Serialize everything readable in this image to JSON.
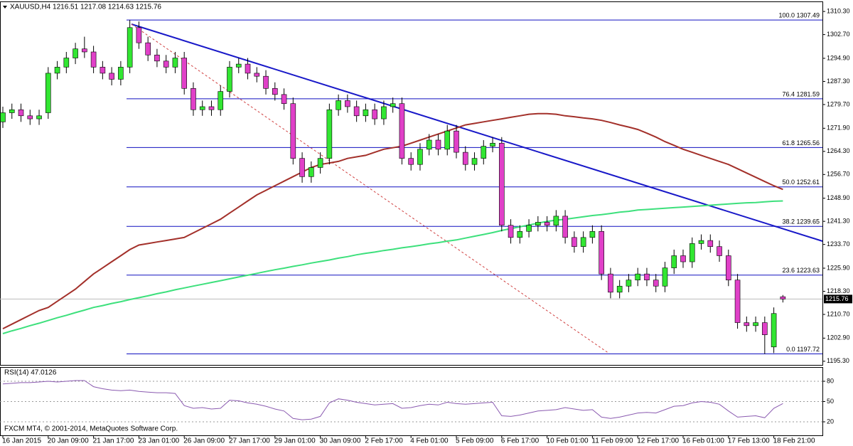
{
  "chart_data": [
    {
      "type": "candlestick",
      "title": "XAUUSD,H4  1216.51 1217.08 1214.63 1215.76",
      "categories": [
        "16 Jan 2015",
        null,
        null,
        null,
        null,
        "20 Jan 09:00",
        null,
        null,
        null,
        null,
        "21 Jan 17:00",
        null,
        null,
        null,
        null,
        "23 Jan 01:00",
        null,
        null,
        null,
        null,
        "26 Jan 09:00",
        null,
        null,
        null,
        null,
        "27 Jan 17:00",
        null,
        null,
        null,
        null,
        "29 Jan 01:00",
        null,
        null,
        null,
        null,
        "30 Jan 09:00",
        null,
        null,
        null,
        null,
        "2 Feb 17:00",
        null,
        null,
        null,
        null,
        "4 Feb 01:00",
        null,
        null,
        null,
        null,
        "5 Feb 09:00",
        null,
        null,
        null,
        null,
        "6 Feb 17:00",
        null,
        null,
        null,
        null,
        "10 Feb 01:00",
        null,
        null,
        null,
        null,
        "11 Feb 09:00",
        null,
        null,
        null,
        null,
        "12 Feb 17:00",
        null,
        null,
        null,
        null,
        "16 Feb 01:00",
        null,
        null,
        null,
        null,
        "17 Feb 13:00",
        null,
        null,
        null,
        null,
        "18 Feb 21:00",
        null
      ],
      "open": [
        1274,
        1277,
        1278,
        1276,
        1275,
        1277,
        1290,
        1292,
        1295,
        1298,
        1297,
        1292,
        1290,
        1288,
        1292,
        1305,
        1300,
        1296,
        1294,
        1292,
        1295,
        1285,
        1278,
        1279,
        1278,
        1284,
        1292,
        1293,
        1290,
        1289,
        1285,
        1283,
        1280,
        1262,
        1256,
        1259,
        1262,
        1278,
        1281,
        1279,
        1276,
        1278,
        1275,
        1279,
        1280,
        1262,
        1260,
        1265,
        1268,
        1265,
        1271,
        1264,
        1260,
        1262,
        1266,
        1267,
        1240,
        1236,
        1238,
        1240,
        1241,
        1240,
        1243,
        1236,
        1233,
        1236,
        1238,
        1224,
        1218,
        1220,
        1222,
        1224,
        1222,
        1220,
        1226,
        1230,
        1228,
        1234,
        1235,
        1233,
        1230,
        1222,
        1208,
        1207,
        1208,
        1200,
        1216.51
      ],
      "high": [
        1279,
        1280,
        1280,
        1278,
        1278,
        1292,
        1294,
        1297,
        1300,
        1302,
        1299,
        1294,
        1292,
        1294,
        1307.49,
        1307,
        1302,
        1298,
        1296,
        1297,
        1297,
        1287,
        1281,
        1281,
        1286,
        1294,
        1295,
        1295,
        1292,
        1291,
        1287,
        1285,
        1282,
        1264,
        1261,
        1264,
        1280,
        1283,
        1283,
        1281,
        1280,
        1280,
        1281,
        1282,
        1282,
        1264,
        1267,
        1270,
        1270,
        1273,
        1273,
        1266,
        1264,
        1268,
        1269,
        1269,
        1242,
        1240,
        1242,
        1243,
        1243,
        1245,
        1245,
        1238,
        1238,
        1240,
        1240,
        1226,
        1222,
        1224,
        1226,
        1226,
        1224,
        1228,
        1232,
        1232,
        1236,
        1237,
        1237,
        1235,
        1232,
        1224,
        1210,
        1210,
        1210,
        1213,
        1217.08
      ],
      "low": [
        1272,
        1275,
        1274,
        1273,
        1273,
        1275,
        1288,
        1290,
        1293,
        1295,
        1290,
        1288,
        1286,
        1286,
        1290,
        1298,
        1294,
        1292,
        1290,
        1290,
        1283,
        1276,
        1276,
        1276,
        1276,
        1282,
        1290,
        1288,
        1287,
        1283,
        1281,
        1278,
        1260,
        1254,
        1254,
        1257,
        1260,
        1276,
        1277,
        1274,
        1274,
        1273,
        1273,
        1277,
        1260,
        1258,
        1258,
        1263,
        1263,
        1263,
        1262,
        1258,
        1258,
        1260,
        1264,
        1238,
        1234,
        1234,
        1236,
        1238,
        1238,
        1238,
        1234,
        1231,
        1231,
        1234,
        1222,
        1216,
        1216,
        1218,
        1220,
        1220,
        1218,
        1218,
        1224,
        1226,
        1226,
        1232,
        1231,
        1228,
        1220,
        1206,
        1205,
        1205,
        1197.72,
        1198,
        1214.63
      ],
      "close": [
        1277,
        1278,
        1276,
        1275,
        1276,
        1290,
        1292,
        1295,
        1298,
        1297,
        1292,
        1290,
        1288,
        1292,
        1305,
        1300,
        1296,
        1294,
        1292,
        1295,
        1285,
        1278,
        1279,
        1278,
        1284,
        1292,
        1293,
        1290,
        1289,
        1285,
        1283,
        1280,
        1262,
        1256,
        1259,
        1262,
        1278,
        1281,
        1279,
        1276,
        1278,
        1275,
        1279,
        1280,
        1262,
        1260,
        1265,
        1268,
        1265,
        1271,
        1264,
        1260,
        1262,
        1266,
        1267,
        1240,
        1236,
        1238,
        1240,
        1241,
        1240,
        1243,
        1236,
        1233,
        1236,
        1238,
        1224,
        1218,
        1220,
        1222,
        1224,
        1222,
        1220,
        1226,
        1230,
        1228,
        1234,
        1235,
        1233,
        1230,
        1222,
        1208,
        1207,
        1208,
        1204,
        1211,
        1215.76
      ],
      "up_color": "#32e632",
      "down_color": "#e040c8",
      "lines": [
        {
          "color": "#a3302a",
          "values": [
            1206,
            1207.5,
            1209,
            1210.5,
            1212,
            1213,
            1215,
            1217,
            1219,
            1221.5,
            1224,
            1226,
            1228,
            1230,
            1232,
            1233.5,
            1234,
            1234.5,
            1235,
            1235.5,
            1236,
            1237.5,
            1239,
            1240.5,
            1242,
            1244,
            1246,
            1248,
            1250,
            1251.5,
            1253,
            1254.5,
            1256,
            1257.5,
            1259,
            1260,
            1260.5,
            1261,
            1262,
            1262.5,
            1263,
            1264,
            1265,
            1265.5,
            1266,
            1267,
            1268,
            1269,
            1270,
            1271,
            1272,
            1273,
            1273.5,
            1274,
            1274.5,
            1275,
            1275.5,
            1276,
            1276.5,
            1276.7,
            1276.7,
            1276.5,
            1276,
            1275.7,
            1275.3,
            1275,
            1274.5,
            1273.8,
            1273,
            1272.3,
            1271.5,
            1270.3,
            1269,
            1267.5,
            1266.3,
            1265,
            1264,
            1263,
            1262,
            1261,
            1260,
            1258.6,
            1257.2,
            1255.8,
            1254.4,
            1253,
            1251.8
          ]
        },
        {
          "color": "#3de07c",
          "values": [
            1204.4,
            1205.3,
            1206.1,
            1207,
            1207.8,
            1208.7,
            1209.6,
            1210.4,
            1211.3,
            1212.1,
            1213,
            1213.6,
            1214.3,
            1214.9,
            1215.6,
            1216.2,
            1216.8,
            1217.5,
            1218.1,
            1218.8,
            1219.4,
            1220,
            1220.6,
            1221.2,
            1221.8,
            1222.4,
            1223,
            1223.6,
            1224.2,
            1224.8,
            1225.4,
            1225.9,
            1226.5,
            1227,
            1227.6,
            1228.1,
            1228.6,
            1229.2,
            1229.7,
            1230.3,
            1230.8,
            1231.2,
            1231.7,
            1232.1,
            1232.6,
            1233,
            1233.4,
            1233.9,
            1234.3,
            1234.8,
            1235.2,
            1235.8,
            1236.4,
            1237,
            1237.6,
            1238.3,
            1238.9,
            1239.5,
            1240.1,
            1240.7,
            1241.3,
            1241.7,
            1242,
            1242.4,
            1242.8,
            1243.2,
            1243.5,
            1243.9,
            1244.3,
            1244.6,
            1245,
            1245.2,
            1245.4,
            1245.6,
            1245.8,
            1246,
            1246.2,
            1246.4,
            1246.6,
            1246.8,
            1247,
            1247.2,
            1247.4,
            1247.5,
            1247.7,
            1247.9,
            1248
          ]
        }
      ],
      "fib_levels": [
        {
          "value": 1307.49,
          "label": "100.0 1307.49"
        },
        {
          "value": 1281.59,
          "label": "76.4 1281.59"
        },
        {
          "value": 1265.56,
          "label": "61.8 1265.56"
        },
        {
          "value": 1252.61,
          "label": "50.0 1252.61"
        },
        {
          "value": 1239.65,
          "label": "38.2 1239.65"
        },
        {
          "value": 1223.63,
          "label": "23.6 1223.63"
        },
        {
          "value": 1197.72,
          "label": "0.0 1197.72"
        }
      ],
      "fib_color": "#1010c0",
      "last_price": 1215.76,
      "ylim": [
        1194.1,
        1312.9
      ],
      "yticks": [
        {
          "value": 1310.3,
          "label": "1310.30"
        },
        {
          "value": 1302.7,
          "label": "1302.70"
        },
        {
          "value": 1294.9,
          "label": "1294.90"
        },
        {
          "value": 1287.3,
          "label": "1287.30"
        },
        {
          "value": 1279.7,
          "label": "1279.70"
        },
        {
          "value": 1271.9,
          "label": "1271.90"
        },
        {
          "value": 1264.3,
          "label": "1264.30"
        },
        {
          "value": 1256.7,
          "label": "1256.70"
        },
        {
          "value": 1248.9,
          "label": "1248.90"
        },
        {
          "value": 1241.3,
          "label": "1241.30"
        },
        {
          "value": 1233.7,
          "label": "1233.70"
        },
        {
          "value": 1225.9,
          "label": "1225.90"
        },
        {
          "value": 1218.3,
          "label": "1218.30"
        },
        {
          "value": 1210.7,
          "label": "1210.70"
        },
        {
          "value": 1202.9,
          "label": "1202.90"
        },
        {
          "value": 1195.3,
          "label": "1195.30"
        }
      ]
    },
    {
      "type": "line",
      "title": "RSI(14) 47.0126",
      "color": "#8a5ab0",
      "values": [
        76,
        77,
        78,
        78,
        79,
        80,
        79,
        80,
        81,
        81,
        72,
        69,
        67,
        66,
        67,
        65,
        64,
        63,
        63,
        62,
        44,
        40,
        41,
        39,
        40,
        52,
        51,
        48,
        46,
        43,
        39,
        36,
        25,
        23,
        24,
        28,
        48,
        54,
        52,
        49,
        47,
        45,
        46,
        47,
        40,
        41,
        44,
        46,
        45,
        49,
        47,
        46,
        47,
        48,
        49,
        29,
        28,
        30,
        33,
        36,
        37,
        38,
        41,
        39,
        37,
        38,
        27,
        25,
        27,
        30,
        33,
        34,
        33,
        38,
        43,
        44,
        48,
        50,
        49,
        46,
        36,
        27,
        28,
        29,
        26,
        40,
        47.0126
      ],
      "ylim": [
        0,
        100
      ],
      "yticks": [
        80,
        50,
        20
      ]
    }
  ],
  "footer": "FXCM MT4, © 2001-2014, MetaQuotes Software Corp."
}
